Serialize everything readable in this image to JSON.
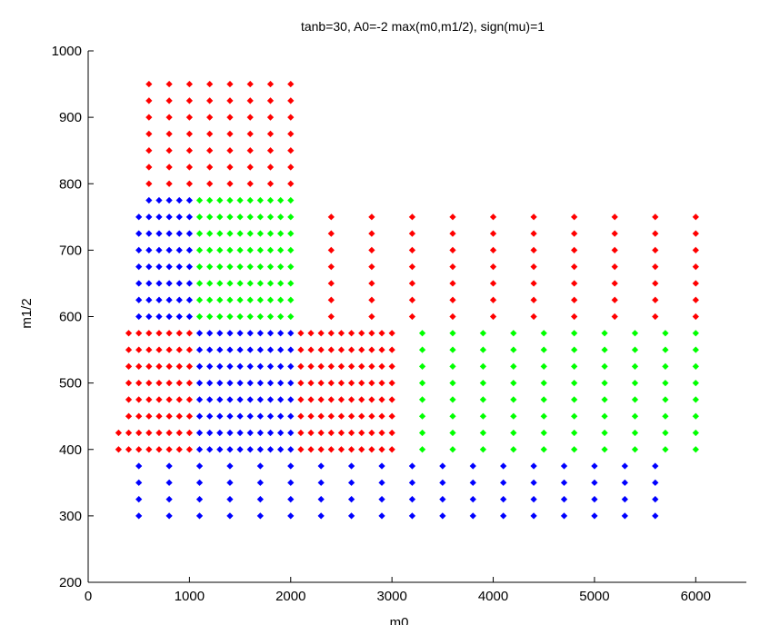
{
  "chart_data": {
    "type": "scatter",
    "title": "tanb=30, A0=-2 max(m0,m1/2), sign(mu)=1",
    "xlabel": "m0",
    "ylabel": "m1/2",
    "xlim": [
      0,
      6500
    ],
    "ylim": [
      200,
      1000
    ],
    "xticks": [
      "0",
      "1000",
      "2000",
      "3000",
      "4000",
      "5000",
      "6000"
    ],
    "yticks": [
      "200",
      "300",
      "400",
      "500",
      "600",
      "700",
      "800",
      "900",
      "1000"
    ],
    "xtick_values": [
      0,
      1000,
      2000,
      3000,
      4000,
      5000,
      6000
    ],
    "ytick_values": [
      200,
      300,
      400,
      500,
      600,
      700,
      800,
      900,
      1000
    ],
    "grid": false,
    "marker": "diamond",
    "series_colors": {
      "red": "#ff0000",
      "green": "#00ff00",
      "blue": "#0000ff"
    },
    "groups": [
      {
        "color": "red",
        "x": {
          "start": 600,
          "end": 2000,
          "step": 200
        },
        "y": {
          "start": 800,
          "end": 950,
          "step": 25
        }
      },
      {
        "color": "blue",
        "x": {
          "start": 500,
          "end": 1000,
          "step": 100
        },
        "y": {
          "start": 600,
          "end": 750,
          "step": 25
        }
      },
      {
        "color": "blue",
        "x": {
          "start": 600,
          "end": 1000,
          "step": 100
        },
        "y": {
          "start": 775,
          "end": 775,
          "step": 25
        }
      },
      {
        "color": "green",
        "x": {
          "start": 1100,
          "end": 2000,
          "step": 100
        },
        "y": {
          "start": 600,
          "end": 775,
          "step": 25
        }
      },
      {
        "color": "red",
        "x": {
          "start": 2400,
          "end": 6000,
          "step": 400
        },
        "y": {
          "start": 600,
          "end": 750,
          "step": 25
        }
      },
      {
        "color": "red",
        "x": {
          "start": 400,
          "end": 1000,
          "step": 100
        },
        "y": {
          "start": 425,
          "end": 575,
          "step": 25
        }
      },
      {
        "color": "red",
        "x": {
          "start": 300,
          "end": 1000,
          "step": 100
        },
        "y": {
          "start": 400,
          "end": 400,
          "step": 25
        }
      },
      {
        "color": "red",
        "x": {
          "start": 300,
          "end": 300,
          "step": 100
        },
        "y": {
          "start": 425,
          "end": 425,
          "step": 25
        }
      },
      {
        "color": "blue",
        "x": {
          "start": 1100,
          "end": 2000,
          "step": 100
        },
        "y": {
          "start": 400,
          "end": 575,
          "step": 25
        }
      },
      {
        "color": "red",
        "x": {
          "start": 2100,
          "end": 3000,
          "step": 100
        },
        "y": {
          "start": 400,
          "end": 575,
          "step": 25
        }
      },
      {
        "color": "green",
        "x": {
          "start": 3300,
          "end": 6000,
          "step": 300
        },
        "y": {
          "start": 400,
          "end": 575,
          "step": 25
        }
      },
      {
        "color": "blue",
        "x": {
          "start": 500,
          "end": 5600,
          "step": 300
        },
        "y": {
          "start": 300,
          "end": 375,
          "step": 25
        }
      }
    ]
  }
}
